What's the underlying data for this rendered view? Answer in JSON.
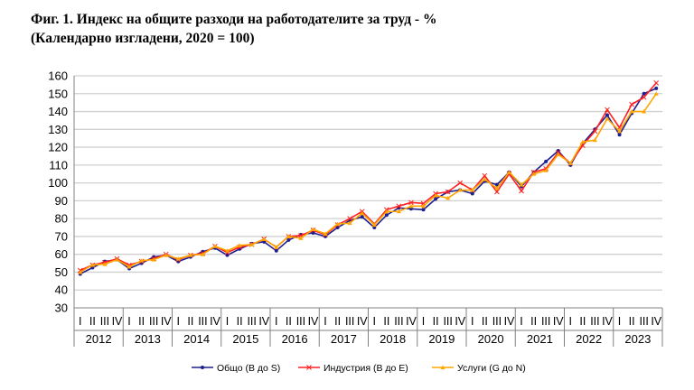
{
  "title_line1": "Фиг. 1. Индекс на общите разходи на работодателите за труд - %",
  "title_line2": "(Календарно изгладени, 2020 = 100)",
  "chart_data": {
    "type": "line",
    "ylim": [
      30,
      160
    ],
    "yticks": [
      30,
      40,
      50,
      60,
      70,
      80,
      90,
      100,
      110,
      120,
      130,
      140,
      150,
      160
    ],
    "grid": true,
    "legend_position": "bottom",
    "quarter_labels": [
      "I",
      "II",
      "III",
      "IV"
    ],
    "years": [
      "2012",
      "2013",
      "2014",
      "2015",
      "2016",
      "2017",
      "2018",
      "2019",
      "2020",
      "2021",
      "2022",
      "2023"
    ],
    "series": [
      {
        "name": "Общо (B до S)",
        "color": "#1f1f8f",
        "marker": "dot",
        "values": [
          49,
          52.5,
          56,
          57,
          52,
          55,
          58.5,
          59.5,
          56,
          58.5,
          61.5,
          63.5,
          59.5,
          63,
          66,
          67,
          62,
          68,
          71,
          72,
          70,
          75,
          79,
          81,
          75,
          82,
          86,
          85.5,
          85,
          91,
          95,
          96,
          94,
          101,
          99,
          106,
          98,
          106,
          112,
          118,
          110,
          122,
          130,
          138,
          127,
          139,
          150,
          153
        ]
      },
      {
        "name": "Индустрия (B до E)",
        "color": "#ff2020",
        "marker": "x",
        "values": [
          51,
          54,
          55.5,
          57.5,
          54,
          56,
          57.5,
          60,
          57,
          59.5,
          60.5,
          64.5,
          61,
          64,
          65.5,
          68.5,
          64,
          70,
          70.5,
          73.5,
          71,
          76.5,
          80,
          84,
          77,
          85,
          87,
          89,
          88.5,
          94,
          95,
          100,
          96,
          104,
          95,
          105,
          95.5,
          106,
          108,
          117,
          111,
          121,
          129,
          141,
          131,
          144,
          148,
          156
        ]
      },
      {
        "name": "Услуги (G до N)",
        "color": "#ffa500",
        "marker": "triangle",
        "values": [
          50,
          54,
          54.5,
          57,
          53,
          56.5,
          57,
          59.5,
          57.5,
          59.5,
          60,
          64.5,
          62,
          65,
          65.5,
          68.5,
          64,
          70,
          69,
          74,
          71.5,
          77,
          77.5,
          83,
          76.5,
          84,
          84,
          87,
          87,
          93,
          91.5,
          96,
          96,
          102,
          97,
          106,
          99,
          105,
          107,
          116,
          111,
          123,
          124,
          136,
          129,
          140,
          140,
          150
        ]
      }
    ]
  }
}
